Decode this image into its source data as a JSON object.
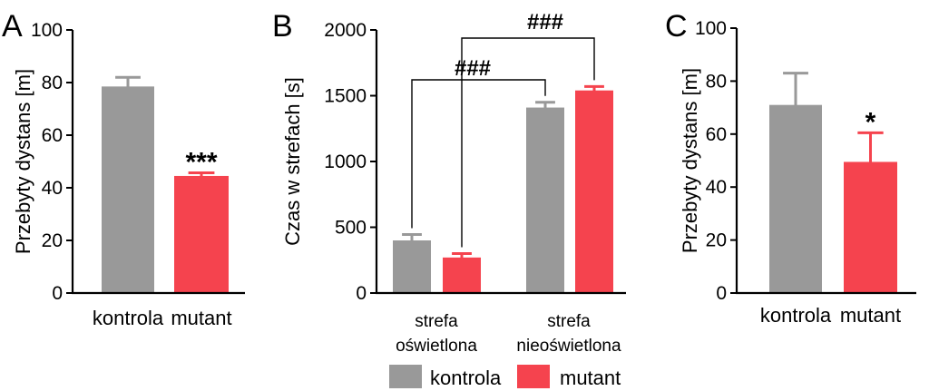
{
  "colors": {
    "kontrola": "#999999",
    "mutant": "#f5434e"
  },
  "legend": [
    "kontrola",
    "mutant"
  ],
  "chart_data": [
    {
      "panel": "A",
      "type": "bar",
      "categories": [
        "kontrola",
        "mutant"
      ],
      "values": [
        78.5,
        44.5
      ],
      "errors": [
        3.5,
        1.2
      ],
      "ylabel": "Przebyty dystans [m]",
      "ylim": [
        0,
        100
      ],
      "yticks": [
        0,
        20,
        40,
        60,
        80,
        100
      ],
      "annotations": [
        {
          "text": "***",
          "category": "mutant"
        }
      ]
    },
    {
      "panel": "B",
      "type": "bar",
      "groups": [
        "strefa\noświetlona",
        "strefa\nnieoświetlona"
      ],
      "series": [
        {
          "name": "kontrola",
          "values": [
            400,
            1410
          ],
          "errors": [
            45,
            40
          ]
        },
        {
          "name": "mutant",
          "values": [
            270,
            1540
          ],
          "errors": [
            30,
            30
          ]
        }
      ],
      "ylabel": "Czas w strefach [s]",
      "ylim": [
        0,
        2000
      ],
      "yticks": [
        0,
        500,
        1000,
        1500,
        2000
      ],
      "annotations": [
        {
          "text": "###",
          "from": "strefa oświetlona / kontrola",
          "to": "strefa nieoświetlona / kontrola"
        },
        {
          "text": "###",
          "from": "strefa oświetlona / mutant",
          "to": "strefa nieoświetlona / mutant"
        }
      ]
    },
    {
      "panel": "C",
      "type": "bar",
      "categories": [
        "kontrola",
        "mutant"
      ],
      "values": [
        71,
        49.5
      ],
      "errors": [
        12,
        11
      ],
      "ylabel": "Przebyty dystans [m]",
      "ylim": [
        0,
        100
      ],
      "yticks": [
        0,
        20,
        40,
        60,
        80,
        100
      ],
      "annotations": [
        {
          "text": "*",
          "category": "mutant"
        }
      ]
    }
  ]
}
